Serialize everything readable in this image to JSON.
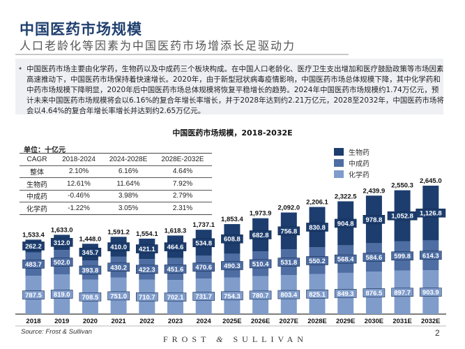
{
  "header": {
    "title": "中国医药市场规模",
    "subtitle": "人口老龄化等因素为中国医药市场增添长足驱动力"
  },
  "summary": "中国医药市场主要由化学药，生物药以及中成药三个板块构成。在中国人口老龄化、医疗卫生支出增加和医疗鼓励政策等市场因素高速推动下，中国医药市场保持着快速增长。2020年，由于新型冠状病毒疫情影响，中国医药市场总体规模下降，其中化学药和中药市场规模下降明显，2020年后中国医药市场总体规模将恢复平稳增长的趋势。2024年中国医药市场规模约1.74万亿元，预计未来中国医药市场规模将会以6.16%的复合年增长率增长，并于2028年达到约2.21万亿元，2028至2032年，中国医药市场将会以4.64%的复合年增长率增长并达到约2.65万亿元。",
  "cagr_table": {
    "unit": "单位：十亿元",
    "header": [
      "CAGR",
      "2018-2024",
      "2024-2028E",
      "2028E-2032E"
    ],
    "rows": [
      [
        "整体",
        "2.10%",
        "6.16%",
        "4.64%"
      ],
      [
        "生物药",
        "12.61%",
        "11.64%",
        "7.92%"
      ],
      [
        "中成药",
        "-0.46%",
        "3.98%",
        "2.79%"
      ],
      [
        "化学药",
        "-1.22%",
        "3.05%",
        "2.31%"
      ]
    ]
  },
  "chart_data": {
    "type": "bar",
    "stacked": true,
    "title": "中国医药市场规模，2018-2032E",
    "categories": [
      "2018",
      "2019",
      "2020",
      "2021",
      "2022",
      "2023",
      "2024",
      "2025E",
      "2026E",
      "2027E",
      "2028E",
      "2029E",
      "2030E",
      "2031E",
      "2032E"
    ],
    "series": [
      {
        "name": "化学药",
        "color": "#7f9ccb",
        "values": [
          787.5,
          819.0,
          708.5,
          751.0,
          710.7,
          702.1,
          731.7,
          754.3,
          780.7,
          803.4,
          825.1,
          849.3,
          876.5,
          897.7,
          903.9
        ]
      },
      {
        "name": "中成药",
        "color": "#4d6da3",
        "values": [
          483.7,
          502.0,
          393.8,
          430.2,
          422.3,
          451.6,
          470.6,
          490.3,
          510.4,
          531.8,
          550.2,
          568.4,
          584.6,
          599.8,
          614.3
        ]
      },
      {
        "name": "生物药",
        "color": "#1c3d6e",
        "values": [
          262.2,
          312.0,
          345.7,
          410.0,
          421.1,
          464.6,
          534.8,
          608.8,
          682.8,
          756.8,
          830.8,
          904.8,
          978.8,
          1052.8,
          1126.8
        ]
      }
    ],
    "totals": [
      "1,533.4",
      "1,633.0",
      "1,448.0",
      "1,591.2",
      "1,554.1",
      "1,618.3",
      "1,737.1",
      "1,853.4",
      "1,973.9",
      "2,092.0",
      "2,206.1",
      "2,322.5",
      "2,439.9",
      "2,550.3",
      "2,645.0"
    ],
    "legend_order": [
      "生物药",
      "中成药",
      "化学药"
    ],
    "legend_position": "top-right",
    "grid": false
  },
  "footer": {
    "source": "Source: Frost & Sullivan",
    "logo": "FROST & SULLIVAN",
    "page": "2"
  }
}
